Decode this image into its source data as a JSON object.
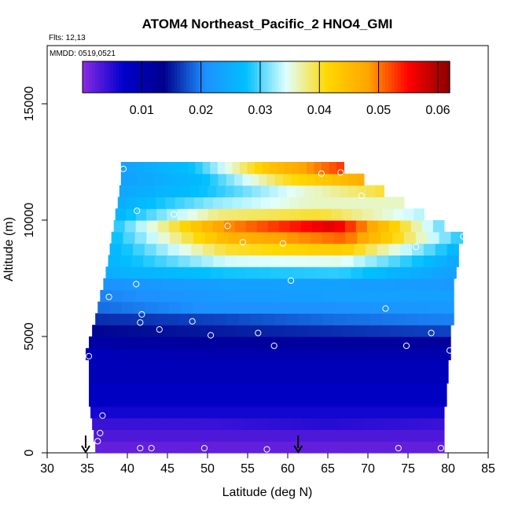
{
  "chart_data": {
    "type": "heatmap",
    "title": "ATOM4 Northeast_Pacific_2 HNO4_GMI",
    "annotations": {
      "flights": "Flts: 12,13",
      "dates": "MMDD: 0519,0521"
    },
    "xlabel": "Latitude (deg N)",
    "ylabel": "Altitude (m)",
    "xlim": [
      30,
      85
    ],
    "ylim": [
      0,
      17500
    ],
    "x_ticks": [
      30,
      35,
      40,
      45,
      50,
      55,
      60,
      65,
      70,
      75,
      80,
      85
    ],
    "y_ticks": [
      0,
      5000,
      10000,
      15000
    ],
    "colorbar": {
      "range": [
        0.0,
        0.062
      ],
      "ticks": [
        0.01,
        0.02,
        0.03,
        0.04,
        0.05,
        0.06
      ],
      "tick_labels": [
        "0.01",
        "0.02",
        "0.03",
        "0.04",
        "0.05",
        "0.06"
      ],
      "colors": [
        "#8a2be2",
        "#0000cd",
        "#00008b",
        "#1e90ff",
        "#00bfff",
        "#e0ffff",
        "#ffd700",
        "#ffa500",
        "#ff0000",
        "#8b0000"
      ]
    },
    "bands": [
      {
        "alt_bottom": 0,
        "alt_top": 500,
        "lat_start": 36.0,
        "lat_end": 79.5,
        "values": [
          0.002,
          0.002,
          0.002,
          0.002
        ]
      },
      {
        "alt_bottom": 500,
        "alt_top": 1000,
        "lat_start": 35.8,
        "lat_end": 79.5,
        "values": [
          0.003,
          0.003,
          0.003,
          0.003
        ]
      },
      {
        "alt_bottom": 1000,
        "alt_top": 1500,
        "lat_start": 35.6,
        "lat_end": 79.5,
        "values": [
          0.004,
          0.004,
          0.005,
          0.004
        ]
      },
      {
        "alt_bottom": 1500,
        "alt_top": 2000,
        "lat_start": 35.4,
        "lat_end": 79.5,
        "values": [
          0.006,
          0.006,
          0.006,
          0.006
        ]
      },
      {
        "alt_bottom": 2000,
        "alt_top": 3000,
        "lat_start": 35.2,
        "lat_end": 79.8,
        "values": [
          0.008,
          0.008,
          0.008,
          0.008
        ]
      },
      {
        "alt_bottom": 3000,
        "alt_top": 4000,
        "lat_start": 35.2,
        "lat_end": 80.0,
        "values": [
          0.009,
          0.009,
          0.009,
          0.009
        ]
      },
      {
        "alt_bottom": 4000,
        "alt_top": 4500,
        "lat_start": 34.8,
        "lat_end": 80.3,
        "values": [
          0.009,
          0.01,
          0.01,
          0.01
        ]
      },
      {
        "alt_bottom": 4500,
        "alt_top": 5000,
        "lat_start": 35.2,
        "lat_end": 80.3,
        "values": [
          0.011,
          0.012,
          0.012,
          0.012
        ]
      },
      {
        "alt_bottom": 5000,
        "alt_top": 5500,
        "lat_start": 35.6,
        "lat_end": 80.3,
        "values": [
          0.014,
          0.015,
          0.016,
          0.017
        ]
      },
      {
        "alt_bottom": 5500,
        "alt_top": 6000,
        "lat_start": 36.0,
        "lat_end": 80.7,
        "values": [
          0.016,
          0.017,
          0.019,
          0.02
        ]
      },
      {
        "alt_bottom": 6000,
        "alt_top": 6500,
        "lat_start": 36.3,
        "lat_end": 80.7,
        "values": [
          0.019,
          0.021,
          0.021,
          0.022
        ]
      },
      {
        "alt_bottom": 6500,
        "alt_top": 7000,
        "lat_start": 36.6,
        "lat_end": 80.7,
        "values": [
          0.02,
          0.022,
          0.023,
          0.023
        ]
      },
      {
        "alt_bottom": 7000,
        "alt_top": 7500,
        "lat_start": 37.0,
        "lat_end": 80.7,
        "values": [
          0.021,
          0.023,
          0.023,
          0.022
        ]
      },
      {
        "alt_bottom": 7500,
        "alt_top": 8000,
        "lat_start": 37.3,
        "lat_end": 81.0,
        "values": [
          0.025,
          0.028,
          0.029,
          0.023
        ]
      },
      {
        "alt_bottom": 8000,
        "alt_top": 8500,
        "lat_start": 37.6,
        "lat_end": 81.3,
        "values": [
          0.026,
          0.034,
          0.035,
          0.024
        ]
      },
      {
        "alt_bottom": 8500,
        "alt_top": 9000,
        "lat_start": 37.8,
        "lat_end": 81.3,
        "values": [
          0.026,
          0.04,
          0.043,
          0.026
        ]
      },
      {
        "alt_bottom": 9000,
        "alt_top": 9500,
        "lat_start": 38.0,
        "lat_end": 81.8,
        "values": [
          0.027,
          0.046,
          0.051,
          0.028
        ]
      },
      {
        "alt_bottom": 9500,
        "alt_top": 10000,
        "lat_start": 38.3,
        "lat_end": 79.5,
        "values": [
          0.028,
          0.049,
          0.057,
          0.03
        ]
      },
      {
        "alt_bottom": 10000,
        "alt_top": 10500,
        "lat_start": 38.5,
        "lat_end": 77.0,
        "values": [
          0.026,
          0.038,
          0.04,
          0.033
        ]
      },
      {
        "alt_bottom": 10500,
        "alt_top": 11000,
        "lat_start": 38.8,
        "lat_end": 74.5,
        "values": [
          0.025,
          0.032,
          0.036,
          0.036
        ]
      },
      {
        "alt_bottom": 11000,
        "alt_top": 11500,
        "lat_start": 39.0,
        "lat_end": 72.0,
        "values": [
          0.024,
          0.028,
          0.035,
          0.04
        ]
      },
      {
        "alt_bottom": 11500,
        "alt_top": 12000,
        "lat_start": 39.2,
        "lat_end": 69.5,
        "values": [
          0.023,
          0.027,
          0.04,
          0.047
        ]
      },
      {
        "alt_bottom": 12000,
        "alt_top": 12500,
        "lat_start": 39.2,
        "lat_end": 67.0,
        "values": [
          0.023,
          0.028,
          0.044,
          0.053
        ]
      }
    ],
    "sample_points": [
      {
        "x": 39.5,
        "y": 12200
      },
      {
        "x": 64.2,
        "y": 12000
      },
      {
        "x": 66.6,
        "y": 12050
      },
      {
        "x": 69.2,
        "y": 11050
      },
      {
        "x": 41.2,
        "y": 10400
      },
      {
        "x": 45.8,
        "y": 10250
      },
      {
        "x": 52.5,
        "y": 9750
      },
      {
        "x": 54.4,
        "y": 9050
      },
      {
        "x": 59.4,
        "y": 9000
      },
      {
        "x": 81.9,
        "y": 9300
      },
      {
        "x": 76.0,
        "y": 8850
      },
      {
        "x": 60.4,
        "y": 7400
      },
      {
        "x": 41.1,
        "y": 7250
      },
      {
        "x": 37.7,
        "y": 6700
      },
      {
        "x": 72.2,
        "y": 6200
      },
      {
        "x": 41.8,
        "y": 5950
      },
      {
        "x": 41.6,
        "y": 5600
      },
      {
        "x": 48.1,
        "y": 5650
      },
      {
        "x": 44.0,
        "y": 5300
      },
      {
        "x": 50.4,
        "y": 5050
      },
      {
        "x": 56.3,
        "y": 5150
      },
      {
        "x": 58.3,
        "y": 4600
      },
      {
        "x": 77.9,
        "y": 5150
      },
      {
        "x": 74.8,
        "y": 4600
      },
      {
        "x": 80.2,
        "y": 4400
      },
      {
        "x": 35.2,
        "y": 4150
      },
      {
        "x": 36.9,
        "y": 1600
      },
      {
        "x": 36.6,
        "y": 850
      },
      {
        "x": 36.3,
        "y": 500
      },
      {
        "x": 41.6,
        "y": 200
      },
      {
        "x": 43.0,
        "y": 200
      },
      {
        "x": 49.6,
        "y": 200
      },
      {
        "x": 57.4,
        "y": 150
      },
      {
        "x": 73.8,
        "y": 200
      },
      {
        "x": 79.1,
        "y": 200
      }
    ],
    "arrows": [
      {
        "x": 34.8
      },
      {
        "x": 61.3
      }
    ]
  }
}
